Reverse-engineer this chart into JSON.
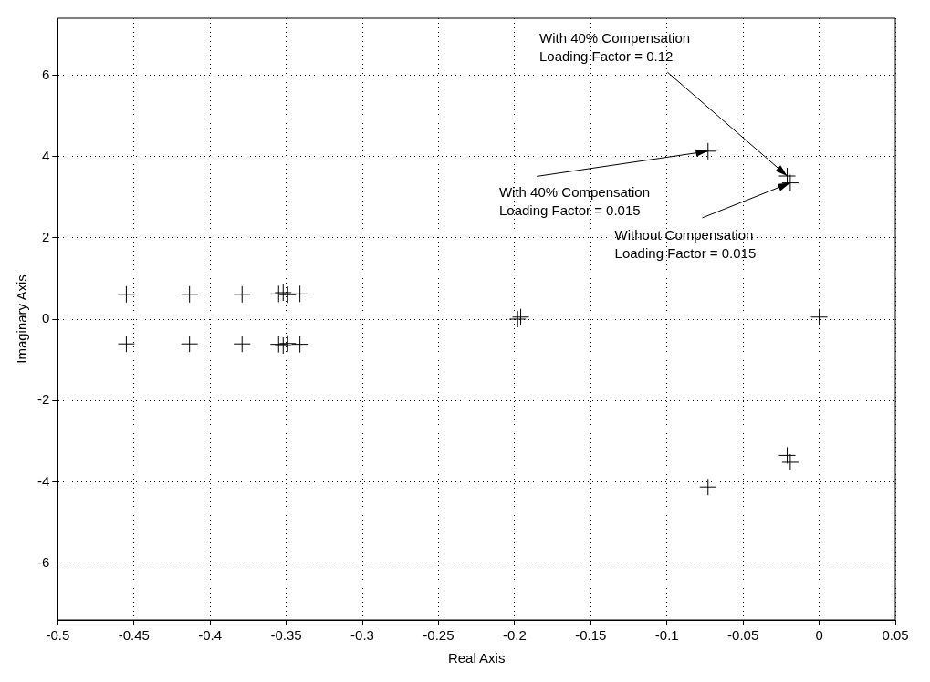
{
  "chart_data": {
    "type": "scatter",
    "xlabel": "Real Axis",
    "ylabel": "Imaginary Axis",
    "xlim": [
      -0.5,
      0.05
    ],
    "ylim": [
      -7.4,
      7.4
    ],
    "xticks": [
      -0.5,
      -0.45,
      -0.4,
      -0.35,
      -0.3,
      -0.25,
      -0.2,
      -0.15,
      -0.1,
      -0.05,
      0,
      0.05
    ],
    "yticks": [
      -6,
      -4,
      -2,
      0,
      2,
      4,
      6
    ],
    "grid": true,
    "legend": false,
    "marker": "cross",
    "series": [
      {
        "color": "#000000",
        "x": [
          -0.455,
          -0.4135,
          -0.379,
          -0.355,
          -0.352,
          -0.349,
          -0.341,
          -0.455,
          -0.4135,
          -0.379,
          -0.355,
          -0.352,
          -0.349,
          -0.341,
          -0.198,
          -0.196,
          0,
          -0.073,
          -0.021,
          -0.019,
          -0.073,
          -0.021,
          -0.019
        ],
        "values": [
          0.61,
          0.61,
          0.61,
          0.62,
          0.65,
          0.6,
          0.62,
          -0.61,
          -0.61,
          -0.61,
          -0.62,
          -0.65,
          -0.6,
          -0.62,
          0,
          0.05,
          0.05,
          4.13,
          3.52,
          3.35,
          -4.13,
          -3.35,
          -3.52
        ]
      }
    ],
    "annotations": [
      {
        "text": "With 40% Compensation\nLoading Factor = 0.12",
        "x": -0.021,
        "y": 3.52
      },
      {
        "text": "With 40% Compensation\nLoading Factor = 0.015",
        "x": -0.073,
        "y": 4.13
      },
      {
        "text": "Without Compensation\nLoading Factor = 0.015",
        "x": -0.019,
        "y": 3.35
      }
    ]
  }
}
